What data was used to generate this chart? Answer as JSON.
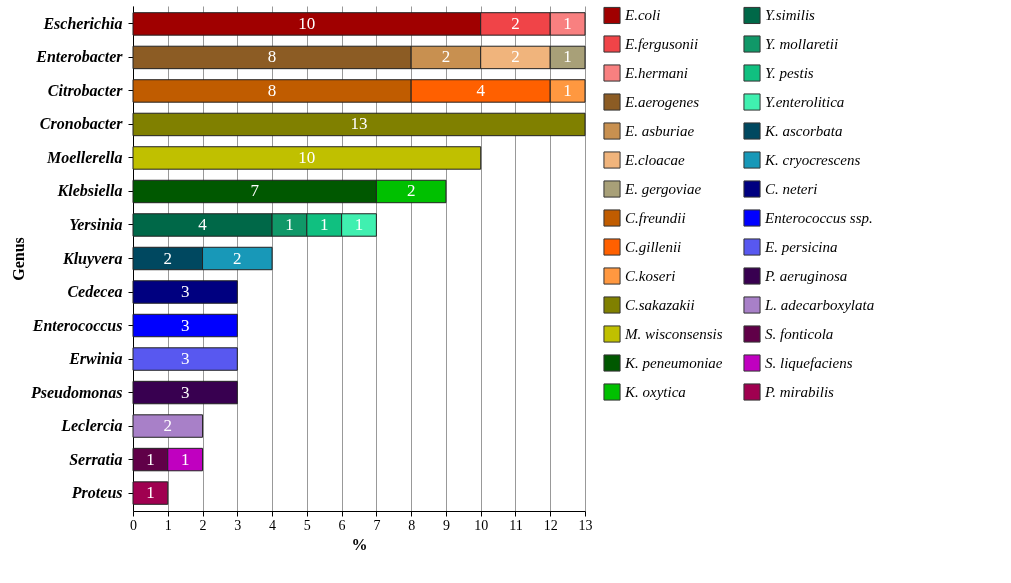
{
  "chart_data": {
    "type": "bar",
    "orientation": "horizontal",
    "stacked": true,
    "xlabel": "%",
    "ylabel": "Genus",
    "categories": [
      "Escherichia",
      "Enterobacter",
      "Citrobacter",
      "Cronobacter",
      "Moellerella",
      "Klebsiella",
      "Yersinia",
      "Kluyvera",
      "Cedecea",
      "Enterococcus",
      "Erwinia",
      "Pseudomonas",
      "Leclercia",
      "Serratia",
      "Proteus"
    ],
    "series": [
      {
        "name": "E.coli",
        "color": "#a00000",
        "values": [
          10,
          null,
          null,
          null,
          null,
          null,
          null,
          null,
          null,
          null,
          null,
          null,
          null,
          null,
          null
        ]
      },
      {
        "name": "E.fergusonii",
        "color": "#f04448",
        "values": [
          2,
          null,
          null,
          null,
          null,
          null,
          null,
          null,
          null,
          null,
          null,
          null,
          null,
          null,
          null
        ]
      },
      {
        "name": "E.hermani",
        "color": "#f88080",
        "values": [
          1,
          null,
          null,
          null,
          null,
          null,
          null,
          null,
          null,
          null,
          null,
          null,
          null,
          null,
          null
        ]
      },
      {
        "name": "E.aerogenes",
        "color": "#8c5c24",
        "values": [
          null,
          8,
          null,
          null,
          null,
          null,
          null,
          null,
          null,
          null,
          null,
          null,
          null,
          null,
          null
        ]
      },
      {
        "name": "E. asburiae",
        "color": "#c89050",
        "values": [
          null,
          2,
          null,
          null,
          null,
          null,
          null,
          null,
          null,
          null,
          null,
          null,
          null,
          null,
          null
        ]
      },
      {
        "name": "E.cloacae",
        "color": "#f0b47c",
        "values": [
          null,
          2,
          null,
          null,
          null,
          null,
          null,
          null,
          null,
          null,
          null,
          null,
          null,
          null,
          null
        ]
      },
      {
        "name": "E. gergoviae",
        "color": "#a8a078",
        "values": [
          null,
          1,
          null,
          null,
          null,
          null,
          null,
          null,
          null,
          null,
          null,
          null,
          null,
          null,
          null
        ]
      },
      {
        "name": "C.freundii",
        "color": "#c05c00",
        "values": [
          null,
          null,
          8,
          null,
          null,
          null,
          null,
          null,
          null,
          null,
          null,
          null,
          null,
          null,
          null
        ]
      },
      {
        "name": "C.gillenii",
        "color": "#ff6000",
        "values": [
          null,
          null,
          4,
          null,
          null,
          null,
          null,
          null,
          null,
          null,
          null,
          null,
          null,
          null,
          null
        ]
      },
      {
        "name": "C.koseri",
        "color": "#ff9840",
        "values": [
          null,
          null,
          1,
          null,
          null,
          null,
          null,
          null,
          null,
          null,
          null,
          null,
          null,
          null,
          null
        ]
      },
      {
        "name": "C.sakazakii",
        "color": "#808000",
        "values": [
          null,
          null,
          null,
          13,
          null,
          null,
          null,
          null,
          null,
          null,
          null,
          null,
          null,
          null,
          null
        ]
      },
      {
        "name": "M. wisconsensis",
        "color": "#c0c000",
        "values": [
          null,
          null,
          null,
          null,
          10,
          null,
          null,
          null,
          null,
          null,
          null,
          null,
          null,
          null,
          null
        ]
      },
      {
        "name": "K. peneumoniae",
        "color": "#005800",
        "values": [
          null,
          null,
          null,
          null,
          null,
          7,
          null,
          null,
          null,
          null,
          null,
          null,
          null,
          null,
          null
        ]
      },
      {
        "name": "K. oxytica",
        "color": "#00c000",
        "values": [
          null,
          null,
          null,
          null,
          null,
          2,
          null,
          null,
          null,
          null,
          null,
          null,
          null,
          null,
          null
        ]
      },
      {
        "name": "Y.similis",
        "color": "#006848",
        "values": [
          null,
          null,
          null,
          null,
          null,
          null,
          4,
          null,
          null,
          null,
          null,
          null,
          null,
          null,
          null
        ]
      },
      {
        "name": "Y. mollaretii",
        "color": "#109868",
        "values": [
          null,
          null,
          null,
          null,
          null,
          null,
          1,
          null,
          null,
          null,
          null,
          null,
          null,
          null,
          null
        ]
      },
      {
        "name": "Y. pestis",
        "color": "#10c080",
        "values": [
          null,
          null,
          null,
          null,
          null,
          null,
          1,
          null,
          null,
          null,
          null,
          null,
          null,
          null,
          null
        ]
      },
      {
        "name": "Y.enterolitica",
        "color": "#40f0b0",
        "values": [
          null,
          null,
          null,
          null,
          null,
          null,
          1,
          null,
          null,
          null,
          null,
          null,
          null,
          null,
          null
        ]
      },
      {
        "name": "K. ascorbata",
        "color": "#004860",
        "values": [
          null,
          null,
          null,
          null,
          null,
          null,
          null,
          2,
          null,
          null,
          null,
          null,
          null,
          null,
          null
        ]
      },
      {
        "name": "K. cryocrescens",
        "color": "#1898b8",
        "values": [
          null,
          null,
          null,
          null,
          null,
          null,
          null,
          2,
          null,
          null,
          null,
          null,
          null,
          null,
          null
        ]
      },
      {
        "name": "C. neteri",
        "color": "#000080",
        "values": [
          null,
          null,
          null,
          null,
          null,
          null,
          null,
          null,
          3,
          null,
          null,
          null,
          null,
          null,
          null
        ]
      },
      {
        "name": "Enterococcus ssp.",
        "color": "#0000ff",
        "values": [
          null,
          null,
          null,
          null,
          null,
          null,
          null,
          null,
          null,
          3,
          null,
          null,
          null,
          null,
          null
        ]
      },
      {
        "name": "E. persicina",
        "color": "#5858f0",
        "values": [
          null,
          null,
          null,
          null,
          null,
          null,
          null,
          null,
          null,
          null,
          3,
          null,
          null,
          null,
          null
        ]
      },
      {
        "name": "P. aeruginosa",
        "color": "#380050",
        "values": [
          null,
          null,
          null,
          null,
          null,
          null,
          null,
          null,
          null,
          null,
          null,
          3,
          null,
          null,
          null
        ]
      },
      {
        "name": "L. adecarboxylata",
        "color": "#a880c8",
        "values": [
          null,
          null,
          null,
          null,
          null,
          null,
          null,
          null,
          null,
          null,
          null,
          null,
          2,
          null,
          null
        ]
      },
      {
        "name": "S. fonticola",
        "color": "#600048",
        "values": [
          null,
          null,
          null,
          null,
          null,
          null,
          null,
          null,
          null,
          null,
          null,
          null,
          null,
          1,
          null
        ]
      },
      {
        "name": "S. liquefaciens",
        "color": "#c000c0",
        "values": [
          null,
          null,
          null,
          null,
          null,
          null,
          null,
          null,
          null,
          null,
          null,
          null,
          null,
          1,
          null
        ]
      },
      {
        "name": "P. mirabilis",
        "color": "#a00050",
        "values": [
          null,
          null,
          null,
          null,
          null,
          null,
          null,
          null,
          null,
          null,
          null,
          null,
          null,
          null,
          1
        ]
      }
    ],
    "xlim": [
      0,
      13
    ],
    "xticks": [
      0,
      1,
      2,
      3,
      4,
      5,
      6,
      7,
      8,
      9,
      10,
      11,
      12,
      13
    ],
    "grid": "x",
    "legend": "right",
    "data_labels": true
  }
}
